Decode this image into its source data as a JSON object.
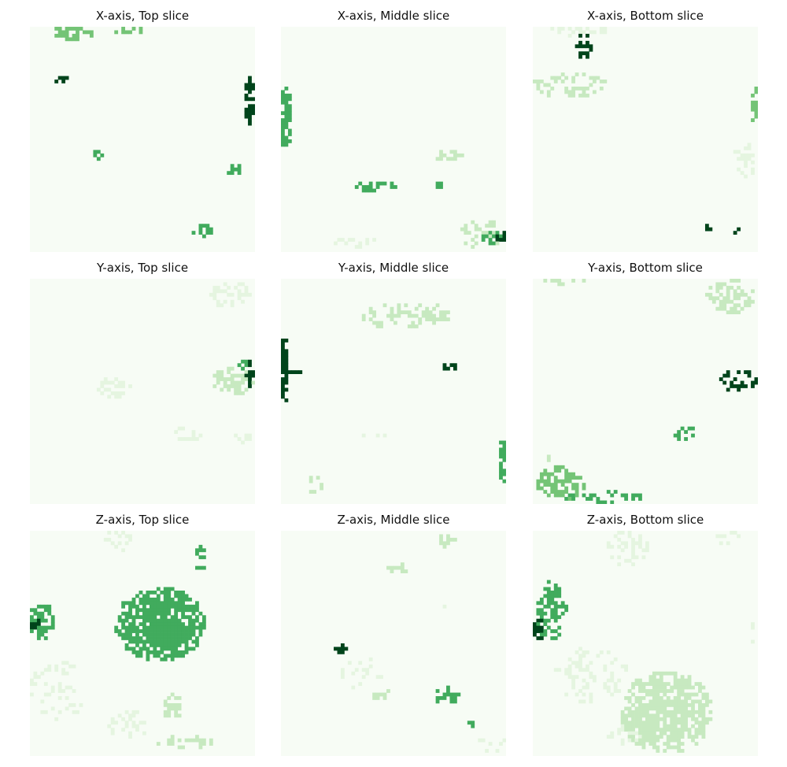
{
  "chart_data": {
    "type": "heatmap",
    "colormap": "Greens",
    "colors": {
      "background": "#f7fcf5",
      "level_1": "#e5f5e0",
      "level_2": "#c7e9c0",
      "level_3": "#74c476",
      "level_4": "#41ab5d",
      "level_5": "#006d2c",
      "level_6": "#00441b"
    },
    "grid_size": [
      64,
      64
    ],
    "panels": [
      {
        "title": "X-axis, Top slice",
        "blobs": [
          {
            "cx": 13,
            "cy": 1.5,
            "rx": 7,
            "ry": 2.2,
            "level": 3,
            "density": 0.55
          },
          {
            "cx": 29,
            "cy": 1.2,
            "rx": 5,
            "ry": 1.3,
            "level": 3,
            "density": 0.55
          },
          {
            "cx": 9,
            "cy": 15,
            "rx": 2.2,
            "ry": 1.2,
            "level": 6,
            "density": 0.75
          },
          {
            "cx": 62.5,
            "cy": 21,
            "rx": 1.8,
            "ry": 6.5,
            "level": 6,
            "density": 0.85
          },
          {
            "cx": 19,
            "cy": 36.5,
            "rx": 1.5,
            "ry": 1.2,
            "level": 4,
            "density": 0.8
          },
          {
            "cx": 58,
            "cy": 40.5,
            "rx": 2.2,
            "ry": 1.4,
            "level": 4,
            "density": 0.7
          },
          {
            "cx": 49,
            "cy": 58,
            "rx": 3.2,
            "ry": 2.2,
            "level": 4,
            "density": 0.6
          }
        ]
      },
      {
        "title": "X-axis, Middle slice",
        "blobs": [
          {
            "cx": 1.5,
            "cy": 26,
            "rx": 2,
            "ry": 9,
            "level": 4,
            "density": 0.75
          },
          {
            "cx": 27,
            "cy": 45.5,
            "rx": 5.5,
            "ry": 1.8,
            "level": 4,
            "density": 0.6
          },
          {
            "cx": 45,
            "cy": 45,
            "rx": 1.5,
            "ry": 1,
            "level": 4,
            "density": 0.8
          },
          {
            "cx": 48,
            "cy": 36.5,
            "rx": 4,
            "ry": 2.2,
            "level": 2,
            "density": 0.45
          },
          {
            "cx": 57,
            "cy": 59,
            "rx": 6.5,
            "ry": 4.5,
            "level": 2,
            "density": 0.5
          },
          {
            "cx": 60,
            "cy": 59.5,
            "rx": 3.5,
            "ry": 2.2,
            "level": 4,
            "density": 0.45
          },
          {
            "cx": 62.5,
            "cy": 60,
            "rx": 1.5,
            "ry": 3.2,
            "level": 6,
            "density": 0.6
          },
          {
            "cx": 22,
            "cy": 61.5,
            "rx": 7,
            "ry": 2,
            "level": 1,
            "density": 0.3
          }
        ]
      },
      {
        "title": "X-axis, Bottom slice",
        "blobs": [
          {
            "cx": 14.5,
            "cy": 5.5,
            "rx": 2.2,
            "ry": 3.5,
            "level": 6,
            "density": 0.7
          },
          {
            "cx": 13,
            "cy": 1.2,
            "rx": 9,
            "ry": 1.4,
            "level": 1,
            "density": 0.5
          },
          {
            "cx": 10,
            "cy": 16.5,
            "rx": 11,
            "ry": 3.5,
            "level": 2,
            "density": 0.5
          },
          {
            "cx": 35,
            "cy": 14,
            "rx": 1.2,
            "ry": 1.2,
            "level": 2,
            "density": 0.7
          },
          {
            "cx": 63,
            "cy": 21.5,
            "rx": 1.2,
            "ry": 6,
            "level": 3,
            "density": 0.6
          },
          {
            "cx": 60.5,
            "cy": 37.5,
            "rx": 3.5,
            "ry": 5,
            "level": 1,
            "density": 0.55
          },
          {
            "cx": 49.5,
            "cy": 57.5,
            "rx": 1.5,
            "ry": 1.3,
            "level": 6,
            "density": 0.75
          },
          {
            "cx": 58,
            "cy": 58,
            "rx": 1.4,
            "ry": 1.4,
            "level": 6,
            "density": 0.55
          }
        ]
      },
      {
        "title": "Y-axis, Top slice",
        "blobs": [
          {
            "cx": 57,
            "cy": 4.5,
            "rx": 6,
            "ry": 4,
            "level": 1,
            "density": 0.5
          },
          {
            "cx": 58,
            "cy": 29,
            "rx": 6.5,
            "ry": 4,
            "level": 2,
            "density": 0.6
          },
          {
            "cx": 62.5,
            "cy": 27,
            "rx": 1.8,
            "ry": 3.5,
            "level": 6,
            "density": 0.6
          },
          {
            "cx": 61,
            "cy": 24.5,
            "rx": 1.5,
            "ry": 1.2,
            "level": 4,
            "density": 0.6
          },
          {
            "cx": 24,
            "cy": 31,
            "rx": 5,
            "ry": 3.2,
            "level": 1,
            "density": 0.45
          },
          {
            "cx": 45,
            "cy": 44,
            "rx": 4,
            "ry": 2,
            "level": 1,
            "density": 0.4
          },
          {
            "cx": 61,
            "cy": 44.5,
            "rx": 3,
            "ry": 2.2,
            "level": 1,
            "density": 0.45
          }
        ]
      },
      {
        "title": "Y-axis, Middle slice",
        "blobs": [
          {
            "cx": 1,
            "cy": 26,
            "rx": 1.4,
            "ry": 9.5,
            "level": 6,
            "density": 0.9
          },
          {
            "cx": 3,
            "cy": 26.5,
            "rx": 2.5,
            "ry": 0.8,
            "level": 6,
            "density": 0.5
          },
          {
            "cx": 36,
            "cy": 10.5,
            "rx": 13,
            "ry": 4,
            "level": 2,
            "density": 0.5
          },
          {
            "cx": 47.5,
            "cy": 25,
            "rx": 2.5,
            "ry": 1.4,
            "level": 6,
            "density": 0.6
          },
          {
            "cx": 63,
            "cy": 51,
            "rx": 1,
            "ry": 8.5,
            "level": 4,
            "density": 0.75
          },
          {
            "cx": 9.5,
            "cy": 58.5,
            "rx": 3,
            "ry": 2.5,
            "level": 2,
            "density": 0.5
          },
          {
            "cx": 27,
            "cy": 44.5,
            "rx": 3.5,
            "ry": 1,
            "level": 1,
            "density": 0.4
          }
        ]
      },
      {
        "title": "Y-axis, Bottom slice",
        "blobs": [
          {
            "cx": 56,
            "cy": 5,
            "rx": 7,
            "ry": 5,
            "level": 2,
            "density": 0.6
          },
          {
            "cx": 9,
            "cy": 0.6,
            "rx": 8,
            "ry": 1,
            "level": 2,
            "density": 0.5
          },
          {
            "cx": 58.5,
            "cy": 29,
            "rx": 5.5,
            "ry": 3.2,
            "level": 6,
            "density": 0.6
          },
          {
            "cx": 43,
            "cy": 44,
            "rx": 3.5,
            "ry": 2.2,
            "level": 4,
            "density": 0.55
          },
          {
            "cx": 8,
            "cy": 58,
            "rx": 7.5,
            "ry": 5,
            "level": 3,
            "density": 0.7
          },
          {
            "cx": 20,
            "cy": 62,
            "rx": 12,
            "ry": 1.6,
            "level": 4,
            "density": 0.5
          },
          {
            "cx": 4.5,
            "cy": 51,
            "rx": 2,
            "ry": 2,
            "level": 2,
            "density": 0.5
          }
        ]
      },
      {
        "title": "Z-axis, Top slice",
        "blobs": [
          {
            "cx": 37,
            "cy": 26.5,
            "rx": 13,
            "ry": 10.5,
            "level": 4,
            "density": 0.95
          },
          {
            "cx": 3.5,
            "cy": 26,
            "rx": 5,
            "ry": 5,
            "level": 4,
            "density": 0.65
          },
          {
            "cx": 1.5,
            "cy": 27,
            "rx": 2,
            "ry": 2.5,
            "level": 6,
            "density": 0.6
          },
          {
            "cx": 48.5,
            "cy": 8,
            "rx": 2,
            "ry": 4,
            "level": 4,
            "density": 0.6
          },
          {
            "cx": 25,
            "cy": 3,
            "rx": 5,
            "ry": 3,
            "level": 1,
            "density": 0.4
          },
          {
            "cx": 40.5,
            "cy": 50,
            "rx": 3,
            "ry": 3.5,
            "level": 2,
            "density": 0.6
          },
          {
            "cx": 28,
            "cy": 55,
            "rx": 7,
            "ry": 4,
            "level": 1,
            "density": 0.35
          },
          {
            "cx": 8,
            "cy": 45,
            "rx": 8,
            "ry": 9,
            "level": 1,
            "density": 0.25
          },
          {
            "cx": 44,
            "cy": 60,
            "rx": 8,
            "ry": 2.5,
            "level": 2,
            "density": 0.35
          }
        ]
      },
      {
        "title": "Z-axis, Middle slice",
        "blobs": [
          {
            "cx": 17,
            "cy": 33.5,
            "rx": 1.7,
            "ry": 1.5,
            "level": 6,
            "density": 0.95
          },
          {
            "cx": 47.5,
            "cy": 47,
            "rx": 4,
            "ry": 2.5,
            "level": 4,
            "density": 0.6
          },
          {
            "cx": 54.5,
            "cy": 55,
            "rx": 1.5,
            "ry": 1.5,
            "level": 4,
            "density": 0.7
          },
          {
            "cx": 33,
            "cy": 10.5,
            "rx": 3,
            "ry": 2,
            "level": 2,
            "density": 0.55
          },
          {
            "cx": 47,
            "cy": 3,
            "rx": 3,
            "ry": 2.5,
            "level": 2,
            "density": 0.45
          },
          {
            "cx": 28,
            "cy": 46.5,
            "rx": 4,
            "ry": 1.8,
            "level": 2,
            "density": 0.45
          },
          {
            "cx": 47,
            "cy": 21,
            "rx": 1.5,
            "ry": 1.5,
            "level": 1,
            "density": 0.55
          },
          {
            "cx": 23,
            "cy": 40,
            "rx": 7,
            "ry": 5,
            "level": 1,
            "density": 0.15
          },
          {
            "cx": 60,
            "cy": 60,
            "rx": 4,
            "ry": 3,
            "level": 1,
            "density": 0.25
          }
        ]
      },
      {
        "title": "Z-axis, Bottom slice",
        "blobs": [
          {
            "cx": 38,
            "cy": 51.5,
            "rx": 13,
            "ry": 12,
            "level": 2,
            "density": 0.9
          },
          {
            "cx": 5,
            "cy": 23,
            "rx": 4,
            "ry": 9,
            "level": 4,
            "density": 0.65
          },
          {
            "cx": 2,
            "cy": 28,
            "rx": 2,
            "ry": 3,
            "level": 6,
            "density": 0.6
          },
          {
            "cx": 9.5,
            "cy": 21.5,
            "rx": 2.5,
            "ry": 1.2,
            "level": 4,
            "density": 0.6
          },
          {
            "cx": 27,
            "cy": 5,
            "rx": 6,
            "ry": 5,
            "level": 1,
            "density": 0.45
          },
          {
            "cx": 56,
            "cy": 2,
            "rx": 4,
            "ry": 2,
            "level": 1,
            "density": 0.4
          },
          {
            "cx": 17,
            "cy": 41,
            "rx": 11,
            "ry": 8,
            "level": 1,
            "density": 0.3
          },
          {
            "cx": 26,
            "cy": 58,
            "rx": 5,
            "ry": 3,
            "level": 1,
            "density": 0.35
          },
          {
            "cx": 62.5,
            "cy": 29,
            "rx": 1,
            "ry": 4,
            "level": 1,
            "density": 0.5
          }
        ]
      }
    ]
  }
}
